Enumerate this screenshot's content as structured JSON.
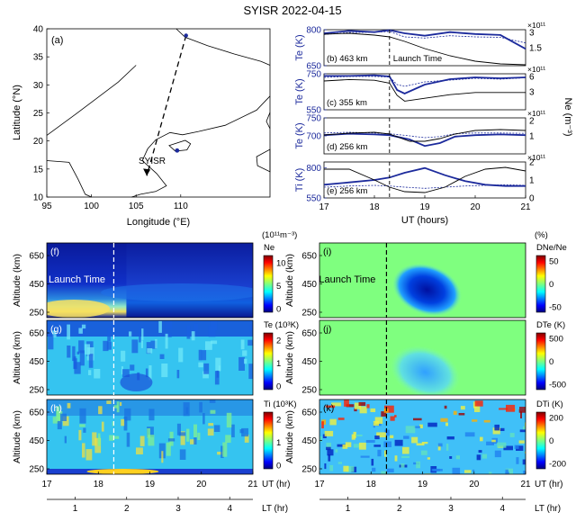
{
  "title": "SYISR 2022-04-15",
  "colors": {
    "blue": "#1c2a9c",
    "black": "#000000",
    "ocean": "#ffffff"
  },
  "map": {
    "label": "(a)",
    "xlabel": "Longitude (°E)",
    "ylabel": "Latitude (°N)",
    "xlim": [
      95,
      120
    ],
    "ylim": [
      10,
      40
    ],
    "xticks": [
      95,
      100,
      105,
      110
    ],
    "yticks": [
      10,
      15,
      20,
      25,
      30,
      35,
      40
    ],
    "station_label": "SYISR",
    "trajectory": [
      [
        110.6,
        38.8
      ],
      [
        106.2,
        13.8
      ]
    ],
    "station": [
      109.6,
      18.3
    ],
    "coastline": [
      [
        109.5,
        40
      ],
      [
        110.5,
        38.5
      ],
      [
        113,
        37
      ],
      [
        116,
        35.5
      ],
      [
        119,
        34.2
      ],
      [
        120,
        33.5
      ]
    ],
    "coastline2": [
      [
        120,
        28
      ],
      [
        118.5,
        25.5
      ],
      [
        115,
        22.8
      ],
      [
        112,
        21.7
      ],
      [
        110.2,
        21.1
      ],
      [
        108.8,
        21.5
      ],
      [
        107.2,
        20.2
      ],
      [
        106.3,
        18.6
      ],
      [
        105.7,
        16.5
      ],
      [
        107.3,
        14.2
      ],
      [
        108.4,
        12
      ],
      [
        107.2,
        11
      ],
      [
        105.5,
        10.5
      ],
      [
        104.5,
        10
      ]
    ],
    "coastline3": [
      [
        95,
        16.5
      ],
      [
        97.5,
        16.2
      ],
      [
        98.5,
        13.2
      ],
      [
        99.3,
        10.5
      ],
      [
        100,
        10
      ]
    ],
    "coastline4": [
      [
        95,
        21
      ],
      [
        98,
        24.5
      ],
      [
        100.5,
        27.5
      ],
      [
        103,
        30.5
      ],
      [
        105,
        33.5
      ]
    ],
    "hainan": [
      [
        108.7,
        19.2
      ],
      [
        110.5,
        20.1
      ],
      [
        111.1,
        19.5
      ],
      [
        110.7,
        18.4
      ],
      [
        109.4,
        18.2
      ],
      [
        108.7,
        19.2
      ]
    ],
    "taiwan": [
      [
        120,
        25.1
      ],
      [
        119.6,
        23.5
      ],
      [
        120,
        22.2
      ]
    ],
    "philippines": [
      [
        118.5,
        17.2
      ],
      [
        120,
        18.5
      ],
      [
        120,
        14.5
      ],
      [
        118.6,
        15.6
      ],
      [
        118.5,
        17.2
      ]
    ]
  },
  "chart_data": [
    {
      "type": "line",
      "panel": "(b)",
      "altitude_label": "463 km",
      "annotation": "Launch Time",
      "ylabel": "Te (K)",
      "ylim": [
        650,
        800
      ],
      "yticks": [
        650,
        800
      ],
      "y2_exponent": "×10¹¹",
      "y2lim": [
        1.0,
        3.0
      ],
      "y2ticks": [
        "1.5",
        "3"
      ],
      "x": [
        17,
        17.5,
        18,
        18.3,
        18.6,
        19,
        19.5,
        20,
        20.5,
        21
      ],
      "series": [
        {
          "values": [
            785,
            795,
            790,
            798,
            785,
            775,
            790,
            782,
            778,
            720
          ]
        },
        {
          "values": [
            780,
            788,
            790,
            792,
            770,
            765,
            775,
            770,
            768,
            745
          ]
        },
        {
          "axis": "y2",
          "values": [
            2.75,
            2.8,
            2.7,
            2.6,
            2.35,
            1.95,
            1.55,
            1.25,
            1.1,
            1.05
          ]
        }
      ]
    },
    {
      "type": "line",
      "panel": "(c)",
      "altitude_label": "355 km",
      "ylabel": "Te (K)",
      "ylim": [
        550,
        750
      ],
      "yticks": [
        550,
        750
      ],
      "y2_exponent": "×10¹¹",
      "y2lim": [
        1.0,
        6.0
      ],
      "y2ticks": [
        "3",
        "6"
      ],
      "x": [
        17,
        17.5,
        18,
        18.3,
        18.45,
        18.6,
        19,
        19.5,
        20,
        20.5,
        21
      ],
      "series": [
        {
          "values": [
            738,
            738,
            742,
            735,
            660,
            640,
            690,
            720,
            730,
            725,
            730
          ]
        },
        {
          "values": [
            730,
            735,
            735,
            732,
            690,
            680,
            705,
            715,
            725,
            720,
            728
          ]
        },
        {
          "axis": "y2",
          "values": [
            5.0,
            5.2,
            5.1,
            4.7,
            3.0,
            2.2,
            2.6,
            3.1,
            3.4,
            3.4,
            3.4
          ]
        }
      ]
    },
    {
      "type": "line",
      "panel": "(d)",
      "altitude_label": "256 km",
      "ylabel": "Te (K)",
      "ylim": [
        650,
        750
      ],
      "yticks": [
        700,
        750
      ],
      "y2_exponent": "×10¹¹",
      "y2lim": [
        0.0,
        2.0
      ],
      "y2ticks": [
        "1",
        "2"
      ],
      "x": [
        17,
        17.5,
        18,
        18.3,
        18.7,
        19,
        19.3,
        19.6,
        20,
        20.5,
        21
      ],
      "series": [
        {
          "values": [
            702,
            706,
            704,
            702,
            690,
            672,
            680,
            698,
            702,
            704,
            702
          ]
        },
        {
          "values": [
            708,
            710,
            708,
            706,
            700,
            695,
            698,
            706,
            708,
            708,
            707
          ]
        },
        {
          "axis": "y2",
          "values": [
            1.05,
            1.15,
            1.2,
            1.1,
            0.7,
            0.7,
            0.85,
            1.1,
            1.3,
            1.35,
            1.3
          ]
        }
      ]
    },
    {
      "type": "line",
      "panel": "(e)",
      "altitude_label": "256 km",
      "ylabel": "Ti (K)",
      "ylim": [
        550,
        850
      ],
      "yticks": [
        550,
        800
      ],
      "y2_exponent": "×10¹¹",
      "y2lim": [
        0.0,
        2.0
      ],
      "y2ticks": [
        "0",
        "1",
        "2"
      ],
      "xlabel": "UT (hours)",
      "xticks": [
        17,
        18,
        19,
        20,
        21
      ],
      "x": [
        17,
        17.5,
        18,
        18.3,
        18.6,
        19,
        19.4,
        19.8,
        20.2,
        20.6,
        21
      ],
      "series": [
        {
          "values": [
            660,
            680,
            700,
            720,
            760,
            800,
            740,
            690,
            660,
            650,
            650
          ]
        },
        {
          "values": [
            640,
            650,
            655,
            650,
            640,
            630,
            640,
            650,
            655,
            660,
            655
          ]
        },
        {
          "axis": "y2",
          "values": [
            1.6,
            1.6,
            1.0,
            0.6,
            0.35,
            0.3,
            0.6,
            1.2,
            1.6,
            1.7,
            1.5
          ]
        }
      ]
    },
    {
      "type": "heatmap",
      "panel": "(f)",
      "annotation": "Launch Time",
      "ylabel": "Altitude (km)",
      "colorbar_label": "Ne",
      "colorbar_unit": "(10¹¹m⁻³)",
      "cticks": [
        "0",
        "5",
        "10"
      ],
      "yticks": [
        250,
        450,
        650
      ]
    },
    {
      "type": "heatmap",
      "panel": "(g)",
      "ylabel": "Altitude (km)",
      "colorbar_label": "Te (10³K)",
      "cticks": [
        "0",
        "1",
        "2"
      ],
      "yticks": [
        250,
        450,
        650
      ]
    },
    {
      "type": "heatmap",
      "panel": "(h)",
      "ylabel": "Altitude (km)",
      "colorbar_label": "Ti (10³K)",
      "cticks": [
        "0",
        "1",
        "2"
      ],
      "yticks": [
        250,
        450,
        650
      ],
      "xticks": [
        17,
        18,
        19,
        20,
        21
      ],
      "xlabel": "UT (hr)",
      "lt_ticks": [
        1,
        2,
        3,
        4
      ],
      "lt_label": "LT (hr)"
    },
    {
      "type": "heatmap",
      "panel": "(i)",
      "annotation": "Launch Time",
      "ylabel": "Altitude (km)",
      "colorbar_label": "DNe/Ne",
      "colorbar_unit": "(%)",
      "cticks": [
        "50",
        "0",
        "-50"
      ],
      "yticks": [
        250,
        450,
        650
      ]
    },
    {
      "type": "heatmap",
      "panel": "(j)",
      "ylabel": "Altitude (km)",
      "colorbar_label": "DTe (K)",
      "cticks": [
        "500",
        "0",
        "-500"
      ],
      "yticks": [
        250,
        450,
        650
      ]
    },
    {
      "type": "heatmap",
      "panel": "(k)",
      "ylabel": "Altitude (km)",
      "colorbar_label": "DTi (K)",
      "cticks": [
        "200",
        "0",
        "-200"
      ],
      "yticks": [
        250,
        450,
        650
      ],
      "xticks": [
        17,
        18,
        19,
        20,
        21
      ],
      "xlabel": "UT (hr)",
      "lt_ticks": [
        1,
        2,
        3,
        4
      ],
      "lt_label": "LT (hr)"
    }
  ],
  "right_axis_label": "Ne (m⁻³)",
  "launch_time_ut": 18.3
}
